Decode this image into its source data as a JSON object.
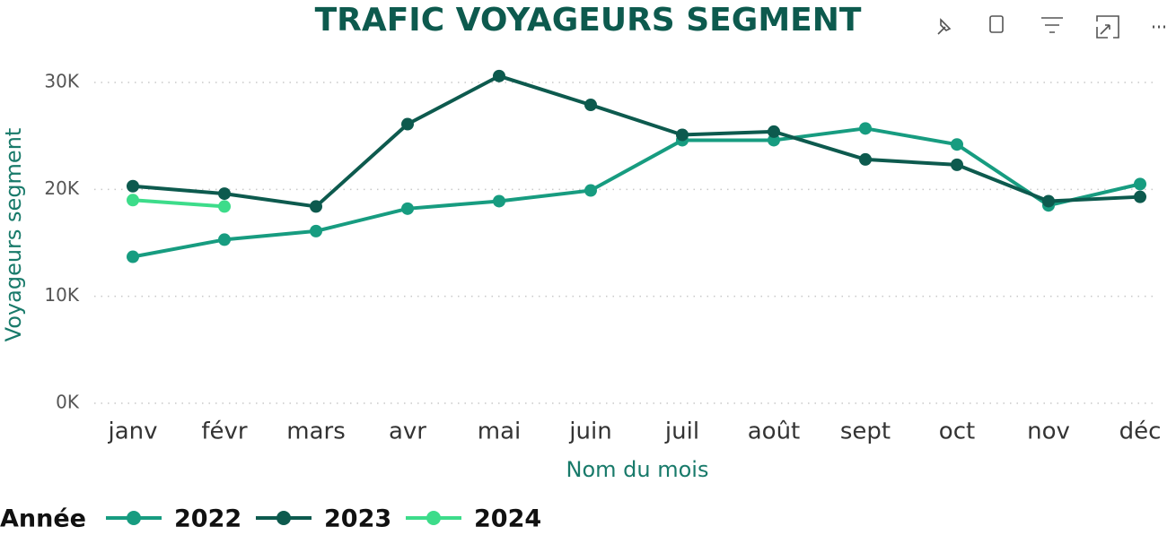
{
  "chart_data": {
    "type": "line",
    "title": "TRAFIC VOYAGEURS SEGMENT",
    "x_label": "Nom du mois",
    "y_label": "Voyageurs segment",
    "legend_title": "Année",
    "categories": [
      "janv",
      "févr",
      "mars",
      "avr",
      "mai",
      "juin",
      "juil",
      "août",
      "sept",
      "oct",
      "nov",
      "déc"
    ],
    "series": [
      {
        "name": "2022",
        "color": "#179c80",
        "values": [
          13700,
          15300,
          16100,
          18200,
          18900,
          19900,
          24600,
          24600,
          25700,
          24200,
          18500,
          20500
        ]
      },
      {
        "name": "2023",
        "color": "#0d5a4e",
        "values": [
          20300,
          19600,
          18400,
          26100,
          30600,
          27900,
          25100,
          25400,
          22800,
          22300,
          18900,
          19300
        ]
      },
      {
        "name": "2024",
        "color": "#3ddc8a",
        "values": [
          19000,
          18400,
          null,
          null,
          null,
          null,
          null,
          null,
          null,
          null,
          null,
          null
        ]
      }
    ],
    "ylim": [
      0,
      30000
    ],
    "yticks": [
      {
        "value": 0,
        "label": "0K"
      },
      {
        "value": 10000,
        "label": "10K"
      },
      {
        "value": 20000,
        "label": "20K"
      },
      {
        "value": 30000,
        "label": "30K"
      }
    ],
    "grid": true
  }
}
